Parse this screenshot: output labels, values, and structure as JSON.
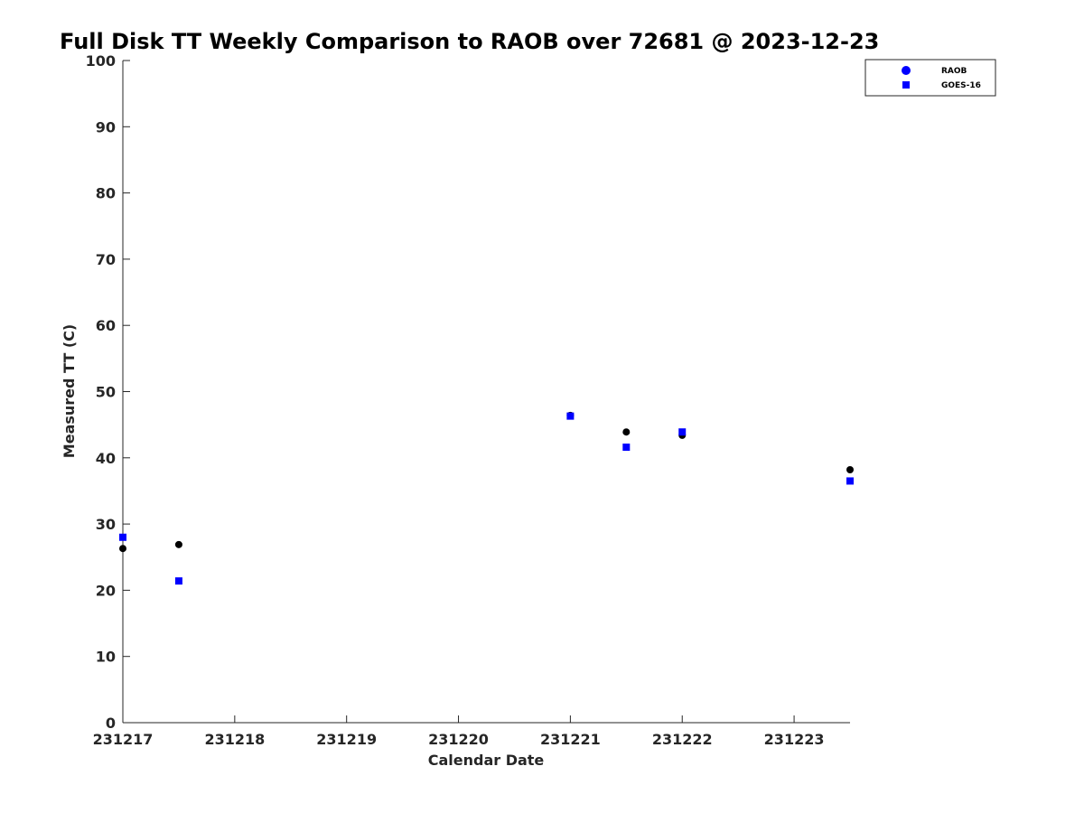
{
  "chart_data": {
    "type": "scatter",
    "title": "Full Disk TT Weekly Comparison to RAOB over 72681 @ 2023-12-23",
    "xlabel": "Calendar Date",
    "ylabel": "Measured TT (C)",
    "xlim": [
      0,
      6.5
    ],
    "ylim": [
      0,
      100
    ],
    "x_ticks": [
      0,
      1,
      2,
      3,
      4,
      5,
      6
    ],
    "x_tick_labels": [
      "231217",
      "231218",
      "231219",
      "231220",
      "231221",
      "231222",
      "231223"
    ],
    "y_ticks": [
      0,
      10,
      20,
      30,
      40,
      50,
      60,
      70,
      80,
      90,
      100
    ],
    "y_tick_labels": [
      "0",
      "10",
      "20",
      "30",
      "40",
      "50",
      "60",
      "70",
      "80",
      "90",
      "100"
    ],
    "grid": false,
    "legend_position": "top-right",
    "series": [
      {
        "name": "RAOB",
        "marker": "circle",
        "legend_color": "#0000ff",
        "color": "#000000",
        "x": [
          0,
          0.5,
          4,
          4.5,
          5,
          6.5
        ],
        "y": [
          26.3,
          26.9,
          46.4,
          43.9,
          43.4,
          38.2
        ]
      },
      {
        "name": "GOES-16",
        "marker": "square",
        "legend_color": "#0000ff",
        "color": "#0000ff",
        "x": [
          0,
          0.5,
          4,
          4.5,
          5,
          6.5
        ],
        "y": [
          28.0,
          21.4,
          46.3,
          41.6,
          43.9,
          36.5
        ]
      }
    ]
  }
}
